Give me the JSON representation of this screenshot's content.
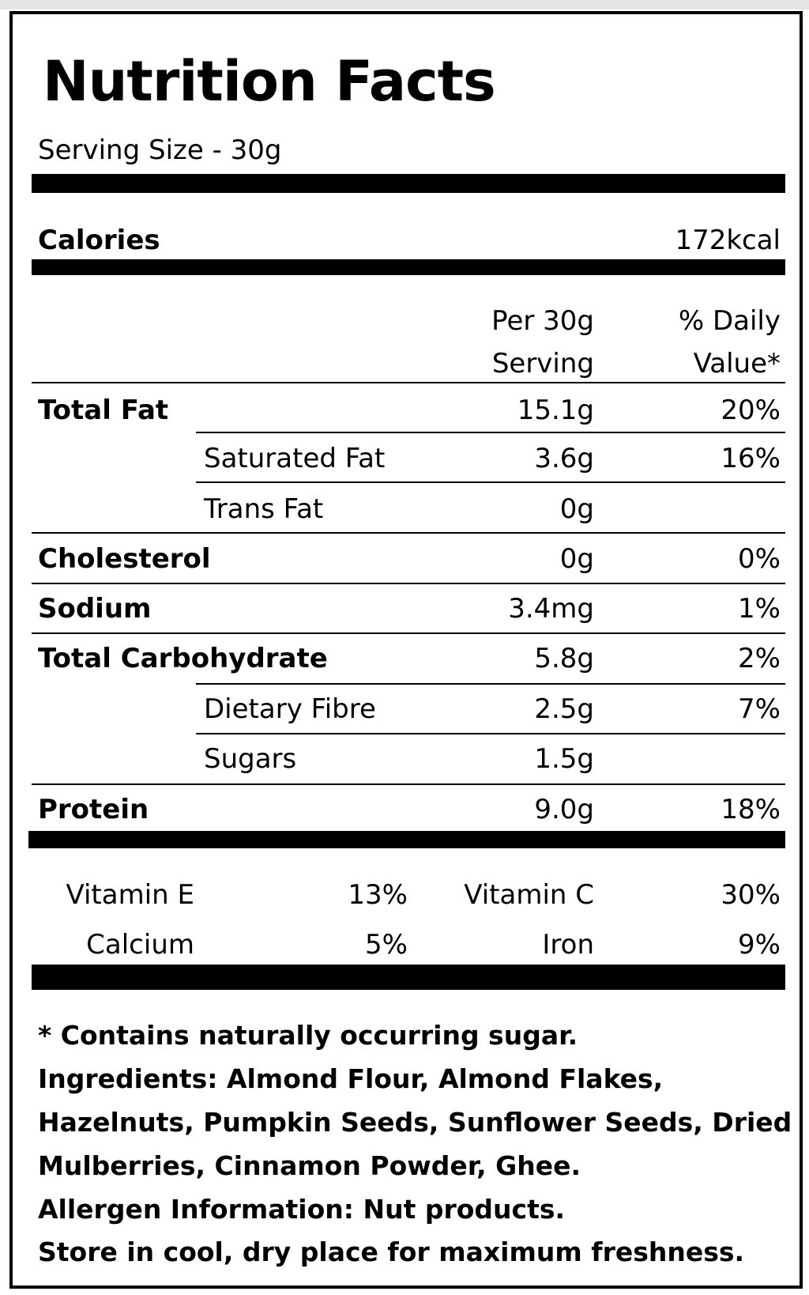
{
  "label": {
    "title": "Nutrition Facts",
    "serving_size": "Serving Size - 30g",
    "calories": {
      "label": "Calories",
      "value": "172kcal"
    },
    "columns": {
      "per_line1": "Per 30g",
      "per_line2": "Serving",
      "dv_line1": "% Daily",
      "dv_line2": "Value*"
    },
    "nutrients": [
      {
        "name": "Total Fat",
        "amount": "15.1g",
        "dv": "20%"
      },
      {
        "name": "Saturated Fat",
        "amount": "3.6g",
        "dv": "16%"
      },
      {
        "name": "Trans Fat",
        "amount": "0g",
        "dv": ""
      },
      {
        "name": "Cholesterol",
        "amount": "0g",
        "dv": "0%"
      },
      {
        "name": "Sodium",
        "amount": "3.4mg",
        "dv": "1%"
      },
      {
        "name": "Total Carbohydrate",
        "amount": "5.8g",
        "dv": "2%"
      },
      {
        "name": "Dietary Fibre",
        "amount": "2.5g",
        "dv": "7%"
      },
      {
        "name": "Sugars",
        "amount": "1.5g",
        "dv": ""
      },
      {
        "name": "Protein",
        "amount": "9.0g",
        "dv": "18%"
      }
    ],
    "vitamins": [
      {
        "name": "Vitamin E",
        "value": "13%"
      },
      {
        "name": "Vitamin C",
        "value": "30%"
      },
      {
        "name": "Calcium",
        "value": "5%"
      },
      {
        "name": "Iron",
        "value": "9%"
      }
    ],
    "footnotes": [
      "* Contains naturally occurring sugar.",
      "Ingredients: Almond Flour, Almond Flakes,",
      "Hazelnuts, Pumpkin Seeds, Sunflower Seeds, Dried",
      "Mulberries, Cinnamon Powder, Ghee.",
      "Allergen Information: Nut products.",
      "Store in cool, dry place for maximum freshness."
    ]
  }
}
